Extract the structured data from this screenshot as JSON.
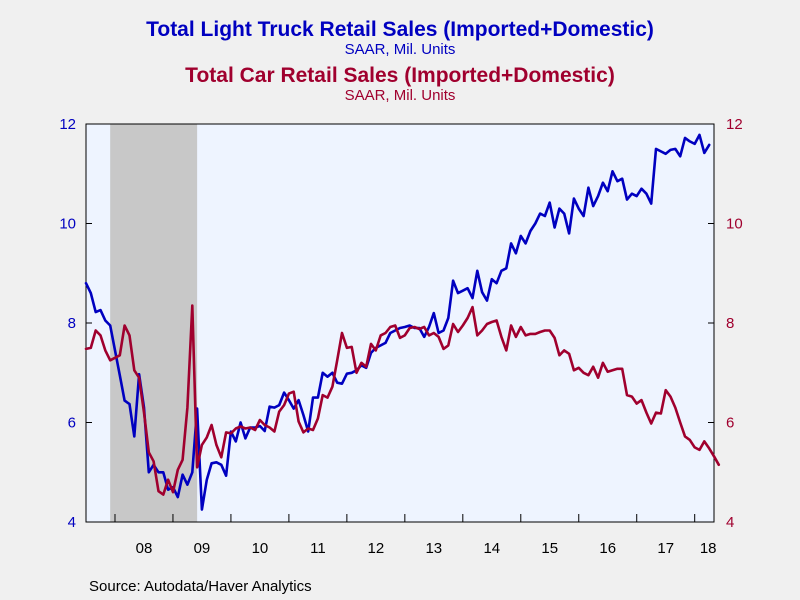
{
  "colors": {
    "truck": "#0000c0",
    "car": "#a0002e",
    "plot_bg": "#eef4ff",
    "page_bg": "#f0f0f0",
    "recession": "#c8c8c8"
  },
  "source": "Source:  Autodata/Haver Analytics",
  "chart_data": {
    "type": "line",
    "titles": [
      {
        "title": "Total Light Truck Retail Sales (Imported+Domestic)",
        "subtitle": "SAAR, Mil. Units",
        "series": "truck"
      },
      {
        "title": "Total Car Retail Sales (Imported+Domestic)",
        "subtitle": "SAAR, Mil. Units",
        "series": "car"
      }
    ],
    "x_range": [
      2007.5,
      2018.333
    ],
    "x_ticks": [
      2008,
      2009,
      2010,
      2011,
      2012,
      2013,
      2014,
      2015,
      2016,
      2017,
      2018
    ],
    "x_tick_labels": [
      "08",
      "09",
      "10",
      "11",
      "12",
      "13",
      "14",
      "15",
      "16",
      "17",
      "18"
    ],
    "ylim": [
      4,
      12
    ],
    "y_ticks": [
      4,
      6,
      8,
      10,
      12
    ],
    "y2lim": [
      4,
      12
    ],
    "y2_ticks": [
      4,
      6,
      8,
      10,
      12
    ],
    "grid": false,
    "shaded_recession": {
      "start": 2007.917,
      "end": 2009.417
    },
    "x_start": 2007.5,
    "x_step": 0.08333,
    "series": [
      {
        "key": "truck",
        "color": "#0000c0",
        "axis": "left",
        "values": [
          8.8,
          8.6,
          8.22,
          8.26,
          8.05,
          7.95,
          7.45,
          6.95,
          6.44,
          6.37,
          5.72,
          6.97,
          6.3,
          5.0,
          5.15,
          5.0,
          5.0,
          4.65,
          4.7,
          4.5,
          4.95,
          4.75,
          5.0,
          6.28,
          4.25,
          4.85,
          5.18,
          5.2,
          5.15,
          4.93,
          5.82,
          5.62,
          6.0,
          5.68,
          5.9,
          5.9,
          5.93,
          5.83,
          6.32,
          6.3,
          6.35,
          6.6,
          6.45,
          6.28,
          6.45,
          6.15,
          5.82,
          6.5,
          6.5,
          7.0,
          6.92,
          7.0,
          6.8,
          6.78,
          6.98,
          7.0,
          7.05,
          7.15,
          7.1,
          7.4,
          7.5,
          7.55,
          7.6,
          7.8,
          7.85,
          7.9,
          7.92,
          7.95,
          7.9,
          7.9,
          7.72,
          7.92,
          8.2,
          7.8,
          7.85,
          8.1,
          8.85,
          8.6,
          8.65,
          8.7,
          8.5,
          9.05,
          8.62,
          8.45,
          8.88,
          8.8,
          9.05,
          9.1,
          9.6,
          9.4,
          9.75,
          9.6,
          9.85,
          10.0,
          10.2,
          10.15,
          10.42,
          9.92,
          10.3,
          10.2,
          9.8,
          10.5,
          10.3,
          10.15,
          10.72,
          10.35,
          10.55,
          10.82,
          10.65,
          11.05,
          10.85,
          10.9,
          10.48,
          10.6,
          10.55,
          10.7,
          10.6,
          10.4,
          11.5,
          11.45,
          11.4,
          11.48,
          11.5,
          11.35,
          11.72,
          11.65,
          11.6,
          11.78,
          11.42,
          11.58
        ]
      },
      {
        "key": "car",
        "color": "#a0002e",
        "axis": "right",
        "values": [
          7.48,
          7.5,
          7.85,
          7.75,
          7.45,
          7.25,
          7.3,
          7.35,
          7.95,
          7.75,
          7.05,
          6.9,
          6.2,
          5.4,
          5.22,
          4.62,
          4.55,
          4.85,
          4.6,
          5.05,
          5.25,
          6.3,
          8.35,
          5.1,
          5.55,
          5.7,
          5.95,
          5.55,
          5.3,
          5.8,
          5.78,
          5.88,
          5.92,
          5.88,
          5.9,
          5.85,
          6.05,
          5.95,
          5.9,
          5.82,
          6.22,
          6.35,
          6.58,
          6.62,
          6.02,
          5.8,
          5.88,
          5.85,
          6.08,
          6.55,
          6.5,
          6.72,
          7.25,
          7.8,
          7.5,
          7.52,
          7.0,
          7.2,
          7.12,
          7.58,
          7.45,
          7.75,
          7.8,
          7.92,
          7.95,
          7.7,
          7.75,
          7.9,
          7.92,
          7.88,
          7.92,
          7.75,
          7.8,
          7.72,
          7.48,
          7.55,
          7.98,
          7.82,
          7.95,
          8.1,
          8.32,
          7.75,
          7.85,
          7.98,
          8.02,
          8.05,
          7.72,
          7.45,
          7.95,
          7.72,
          7.92,
          7.75,
          7.78,
          7.78,
          7.82,
          7.85,
          7.85,
          7.7,
          7.35,
          7.45,
          7.38,
          7.05,
          7.1,
          7.0,
          6.95,
          7.12,
          6.9,
          7.2,
          7.02,
          7.05,
          7.08,
          7.08,
          6.55,
          6.52,
          6.38,
          6.45,
          6.2,
          5.98,
          6.2,
          6.18,
          6.65,
          6.52,
          6.3,
          6.0,
          5.72,
          5.65,
          5.5,
          5.45,
          5.62,
          5.48,
          5.32,
          5.15
        ]
      }
    ]
  }
}
